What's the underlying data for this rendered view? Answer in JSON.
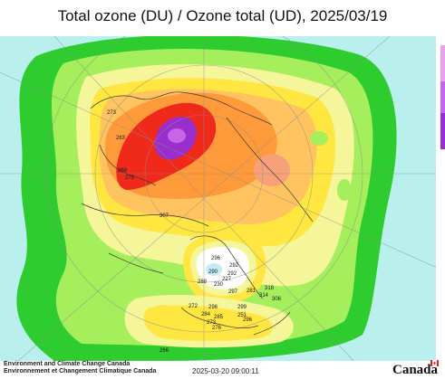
{
  "title": "Total ozone (DU) / Ozone total (UD), 2025/03/19",
  "footer": {
    "agency_en": "Environment and Climate Change Canada",
    "agency_fr": "Environnement et Changement Climatique Canada",
    "timestamp": "2025-03-20 09:00:11",
    "wordmark": "Canada"
  },
  "colors": {
    "ocean": "#b9f0ee",
    "land_bg": "#d9f7e6",
    "green_outer": "#2ecc2e",
    "green_light": "#a5ee5c",
    "yellow_light": "#f5f59a",
    "yellow": "#ffe640",
    "orange_light": "#ffc460",
    "orange": "#ff9a3a",
    "salmon": "#f7a07a",
    "red": "#f02a1a",
    "purple": "#9a2ecc",
    "violet": "#c864e6",
    "coast": "#3c3c3c",
    "grid": "#8c8c8c"
  },
  "station_values": [
    "273",
    "263",
    "269",
    "279",
    "307",
    "296",
    "292",
    "292",
    "290",
    "227",
    "288",
    "230",
    "272",
    "297",
    "281",
    "318",
    "314",
    "306",
    "296",
    "299",
    "284",
    "285",
    "273",
    "276",
    "251",
    "266",
    "296"
  ]
}
